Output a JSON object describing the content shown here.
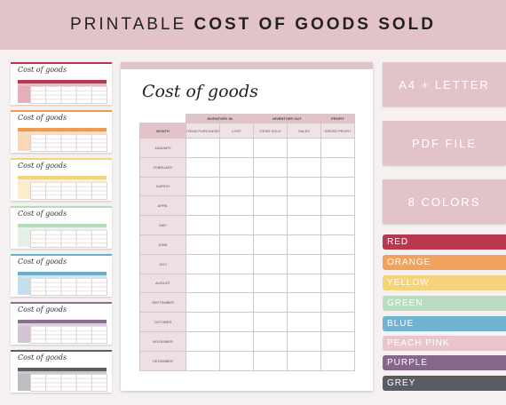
{
  "banner": {
    "part1": "PRINTABLE ",
    "part2": "COST OF GOODS SOLD"
  },
  "thumbnails": [
    {
      "title": "Cost of goods",
      "color": "#b8384f"
    },
    {
      "title": "Cost of goods",
      "color": "#ef9a4e"
    },
    {
      "title": "Cost of goods",
      "color": "#f6d27a"
    },
    {
      "title": "Cost of goods",
      "color": "#b7dcb9"
    },
    {
      "title": "Cost of goods",
      "color": "#67b0cc"
    },
    {
      "title": "Cost of goods",
      "color": "#8d6d92"
    },
    {
      "title": "Cost of goods",
      "color": "#5d5d66"
    }
  ],
  "sheet": {
    "title": "Cost of goods",
    "groups": {
      "inventory_in": "INVENTORY IN",
      "inventory_out": "INVENTORY OUT",
      "profit": "PROFIT"
    },
    "headers": {
      "month": "MONTH",
      "items_purchased": "ITEMS PURCHASED",
      "cost": "COST",
      "items_sold": "ITEMS SOLD",
      "sales": "SALES",
      "gross_profit": "GROSS PROFIT"
    },
    "months": [
      "JANUARY",
      "FEBRUARY",
      "MARCH",
      "APRIL",
      "MAY",
      "JUNE",
      "JULY",
      "AUGUST",
      "SEPTEMBER",
      "OCTOBER",
      "NOVEMBER",
      "DECEMBER"
    ],
    "accent": "#e3c3ca"
  },
  "features": [
    "A4 + LETTER",
    "PDF FILE",
    "8 COLORS"
  ],
  "colors": [
    {
      "label": "RED",
      "hex": "#b8384f"
    },
    {
      "label": "ORANGE",
      "hex": "#f0a35e"
    },
    {
      "label": "YELLOW",
      "hex": "#f6d27a"
    },
    {
      "label": "GREEN",
      "hex": "#b9dcc0"
    },
    {
      "label": "BLUE",
      "hex": "#6fb3d0"
    },
    {
      "label": "PEACH PINK",
      "hex": "#e9c6cc"
    },
    {
      "label": "PURPLE",
      "hex": "#85678c"
    },
    {
      "label": "GREY",
      "hex": "#5b5b63"
    }
  ]
}
